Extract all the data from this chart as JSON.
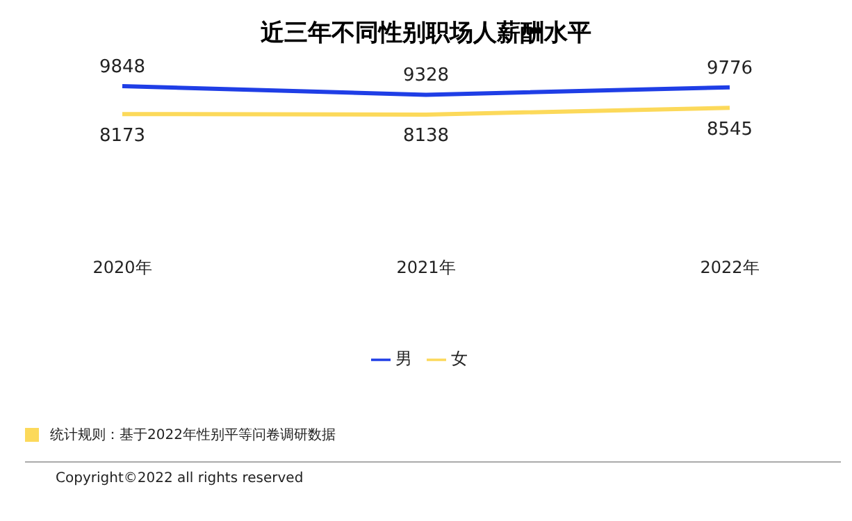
{
  "chart_data": {
    "type": "line",
    "title": "近三年不同性别职场人薪酬水平",
    "categories": [
      "2020年",
      "2021年",
      "2022年"
    ],
    "series": [
      {
        "name": "男",
        "color": "#1f3ee6",
        "values": [
          9848,
          9328,
          9776
        ]
      },
      {
        "name": "女",
        "color": "#fcd95a",
        "values": [
          8173,
          8138,
          8545
        ]
      }
    ],
    "data_labels": true,
    "legend": "bottom",
    "grid": false,
    "marker": "none",
    "annotations": [
      "统计规则：基于2022年性别平等问卷调研数据",
      "Copyright©2022 all rights reserved"
    ]
  }
}
